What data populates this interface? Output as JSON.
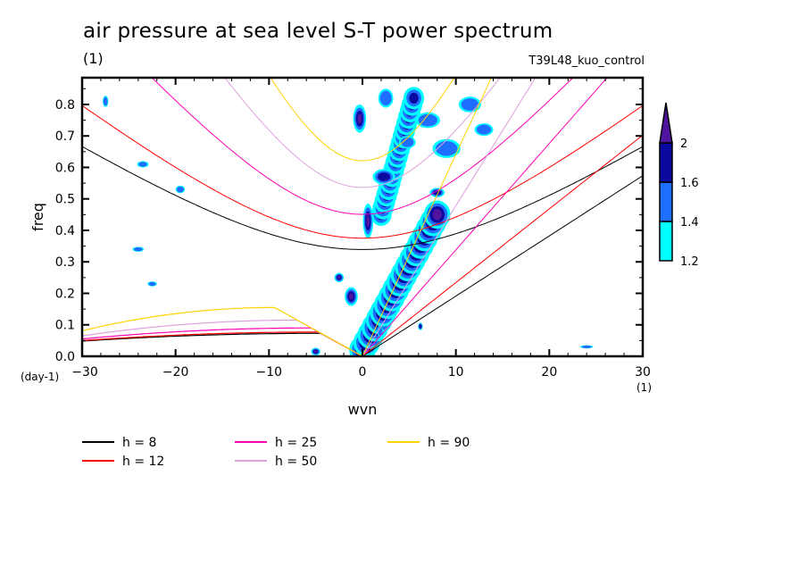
{
  "chart_data": {
    "type": "heatmap",
    "title": "air pressure at sea level S-T power spectrum",
    "units_label": "(1)",
    "experiment": "T39L48_kuo_control",
    "xlabel": "wvn",
    "xunits": "(1)",
    "ylabel": "freq",
    "yunits": "(day-1)",
    "xlim": [
      -30,
      30
    ],
    "ylim": [
      0.0,
      0.885
    ],
    "xticks": [
      -30,
      -20,
      -10,
      0,
      10,
      20,
      30
    ],
    "xtick_labels": [
      "−30",
      "−20",
      "−10",
      "0",
      "10",
      "20",
      "30"
    ],
    "yticks": [
      0.0,
      0.1,
      0.2,
      0.3,
      0.4,
      0.5,
      0.6,
      0.7,
      0.8
    ],
    "ytick_labels": [
      "0.0",
      "0.1",
      "0.2",
      "0.3",
      "0.4",
      "0.5",
      "0.6",
      "0.7",
      "0.8"
    ],
    "colorbar": {
      "levels": [
        1.2,
        1.4,
        1.6,
        2
      ],
      "labels": [
        "1.2",
        "1.4",
        "1.6",
        "2"
      ],
      "colors": [
        "#00ffff",
        "#1e6eff",
        "#0a0aa0",
        "#5014a0"
      ],
      "extend": "max"
    },
    "contour_regions": [
      {
        "level": 3,
        "x": -0.3,
        "y": 0.755,
        "rx": 0.7,
        "ry": 0.045
      },
      {
        "level": 3,
        "x": 0.6,
        "y": 0.43,
        "rx": 0.55,
        "ry": 0.055
      },
      {
        "level": 3,
        "x": -1.2,
        "y": 0.19,
        "rx": 0.7,
        "ry": 0.03
      },
      {
        "level": 3,
        "x": -2.5,
        "y": 0.25,
        "rx": 0.5,
        "ry": 0.015
      },
      {
        "level": 3,
        "x": -5.0,
        "y": 0.015,
        "rx": 0.5,
        "ry": 0.012
      },
      {
        "level": 1,
        "x": 1.9,
        "y": 0.08,
        "rx": 0.3,
        "ry": 0.02
      },
      {
        "level": 2,
        "x": 6.2,
        "y": 0.095,
        "rx": 0.25,
        "ry": 0.012
      },
      {
        "level": 1,
        "x": 2.5,
        "y": 0.82,
        "rx": 0.8,
        "ry": 0.03
      },
      {
        "level": 2,
        "x": 2.3,
        "y": 0.57,
        "rx": 1.2,
        "ry": 0.025
      },
      {
        "level": 1,
        "x": 4.8,
        "y": 0.68,
        "rx": 0.9,
        "ry": 0.02
      },
      {
        "level": 1,
        "x": 7.0,
        "y": 0.75,
        "rx": 1.3,
        "ry": 0.025
      },
      {
        "level": 1,
        "x": 9.0,
        "y": 0.66,
        "rx": 1.5,
        "ry": 0.03
      },
      {
        "level": 2,
        "x": 8.0,
        "y": 0.52,
        "rx": 0.8,
        "ry": 0.015
      },
      {
        "level": 1,
        "x": 11.5,
        "y": 0.8,
        "rx": 1.2,
        "ry": 0.025
      },
      {
        "level": 1,
        "x": 13.0,
        "y": 0.72,
        "rx": 1.0,
        "ry": 0.02
      },
      {
        "level": 1,
        "x": -19.5,
        "y": 0.53,
        "rx": 0.5,
        "ry": 0.012
      },
      {
        "level": 1,
        "x": -23.5,
        "y": 0.61,
        "rx": 0.6,
        "ry": 0.01
      },
      {
        "level": 1,
        "x": -27.5,
        "y": 0.81,
        "rx": 0.3,
        "ry": 0.018
      },
      {
        "level": 1,
        "x": -24.0,
        "y": 0.34,
        "rx": 0.6,
        "ry": 0.008
      },
      {
        "level": 1,
        "x": -22.5,
        "y": 0.23,
        "rx": 0.5,
        "ry": 0.008
      },
      {
        "level": 1,
        "x": 24.0,
        "y": 0.03,
        "rx": 0.7,
        "ry": 0.005
      }
    ],
    "band_regions": [
      {
        "from": [
          0.0,
          0.02
        ],
        "to": [
          8.0,
          0.45
        ],
        "level": 3
      },
      {
        "from": [
          2.0,
          0.45
        ],
        "to": [
          5.5,
          0.82
        ],
        "level": 2
      }
    ],
    "series": [
      {
        "name": "h =  8",
        "h": 8,
        "color": "#000000"
      },
      {
        "name": "h = 12",
        "h": 12,
        "color": "#ff0000"
      },
      {
        "name": "h = 25",
        "h": 25,
        "color": "#ff00b4"
      },
      {
        "name": "h = 50",
        "h": 50,
        "color": "#dca0dc"
      },
      {
        "name": "h = 90",
        "h": 90,
        "color": "#ffd200"
      }
    ],
    "legend": [
      {
        "label": "h =  8",
        "color": "#000000"
      },
      {
        "label": "h = 12",
        "color": "#ff0000"
      },
      {
        "label": "h = 25",
        "color": "#ff00b4"
      },
      {
        "label": "h = 50",
        "color": "#dca0dc"
      },
      {
        "label": "h = 90",
        "color": "#ffd200"
      }
    ],
    "legend_position": "bottom-left"
  }
}
